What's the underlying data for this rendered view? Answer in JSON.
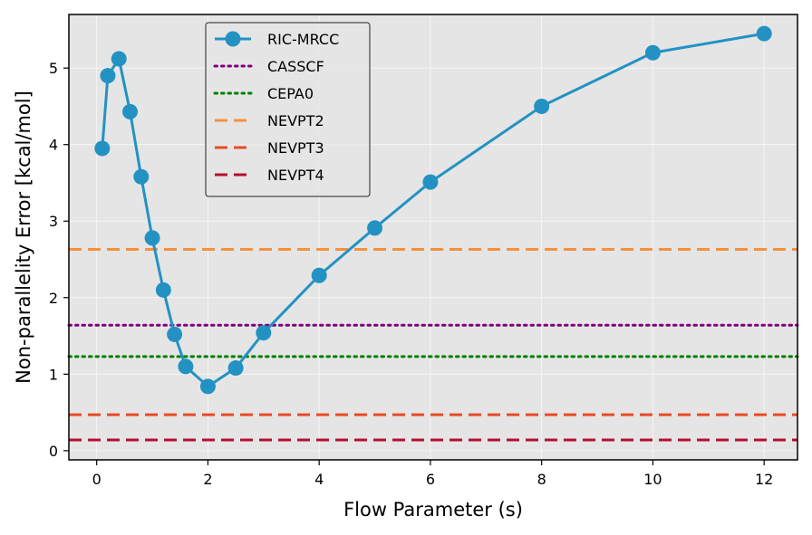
{
  "chart_data": {
    "type": "line",
    "title": "",
    "xlabel": "Flow Parameter (s)",
    "ylabel": "Non-parallelity Error [kcal/mol]",
    "xlim": [
      -0.5,
      12.6
    ],
    "ylim": [
      -0.12,
      5.7
    ],
    "xticks": [
      0,
      2,
      4,
      6,
      8,
      10,
      12
    ],
    "yticks": [
      0,
      1,
      2,
      3,
      4,
      5
    ],
    "grid": true,
    "legend_position": "upper-center",
    "series": [
      {
        "name": "RIC-MRCC",
        "color": "#2392c3",
        "style": "solid-marker",
        "x": [
          0.1,
          0.2,
          0.4,
          0.6,
          0.8,
          1.0,
          1.2,
          1.4,
          1.6,
          2.0,
          2.5,
          3.0,
          4.0,
          5.0,
          6.0,
          8.0,
          10.0,
          12.0
        ],
        "y": [
          3.95,
          4.9,
          5.12,
          4.43,
          3.58,
          2.78,
          2.1,
          1.52,
          1.1,
          0.84,
          1.08,
          1.54,
          2.29,
          2.91,
          3.51,
          4.5,
          5.2,
          5.45
        ]
      },
      {
        "name": "CASSCF",
        "color": "#800080",
        "style": "dotted",
        "y": 1.64
      },
      {
        "name": "CEPA0",
        "color": "#008000",
        "style": "dotted",
        "y": 1.23
      },
      {
        "name": "NEVPT2",
        "color": "#f5913d",
        "style": "dashed",
        "y": 2.63
      },
      {
        "name": "NEVPT3",
        "color": "#e84a27",
        "style": "dashed",
        "y": 0.47
      },
      {
        "name": "NEVPT4",
        "color": "#b5102e",
        "style": "dashed",
        "y": 0.14
      }
    ]
  }
}
